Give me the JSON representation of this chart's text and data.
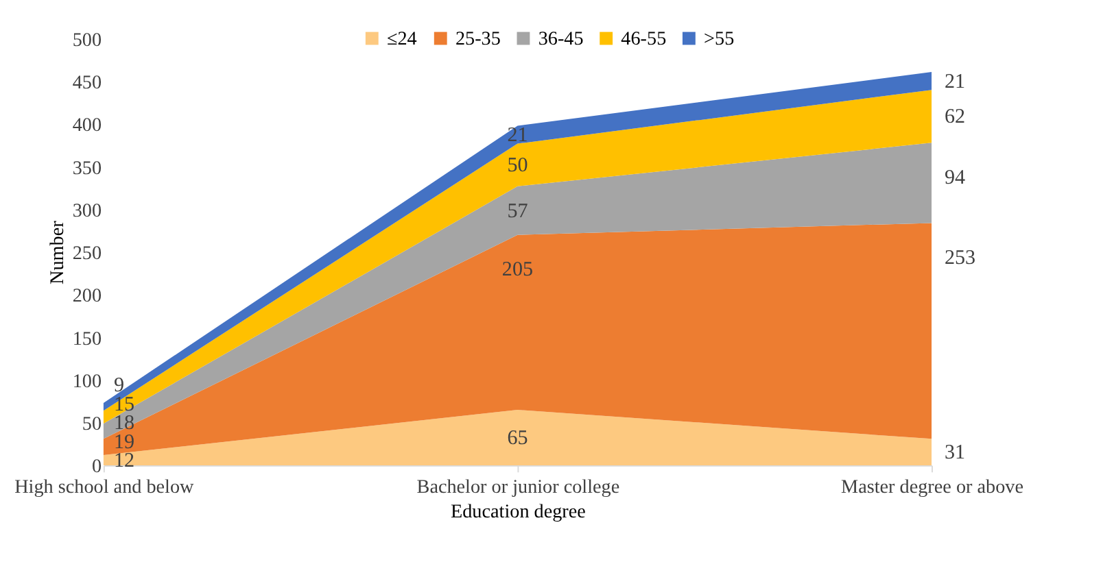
{
  "chart_data": {
    "type": "area",
    "stacked": true,
    "xlabel": "Education degree",
    "ylabel": "Number",
    "categories": [
      "High school and below",
      "Bachelor or junior college",
      "Master degree or above"
    ],
    "series": [
      {
        "name": "≤24",
        "color": "#fdc980",
        "values": [
          12,
          65,
          31
        ]
      },
      {
        "name": "25-35",
        "color": "#ed7d31",
        "values": [
          19,
          205,
          253
        ]
      },
      {
        "name": "36-45",
        "color": "#a5a5a5",
        "values": [
          18,
          57,
          94
        ]
      },
      {
        "name": "46-55",
        "color": "#ffc000",
        "values": [
          15,
          50,
          62
        ]
      },
      {
        "name": ">55",
        "color": "#4472c4",
        "values": [
          9,
          21,
          21
        ]
      }
    ],
    "ylim": [
      0,
      500
    ],
    "yticks": [
      0,
      50,
      100,
      150,
      200,
      250,
      300,
      350,
      400,
      450,
      500
    ],
    "data_labels": true,
    "legend": "top",
    "grid": false
  }
}
